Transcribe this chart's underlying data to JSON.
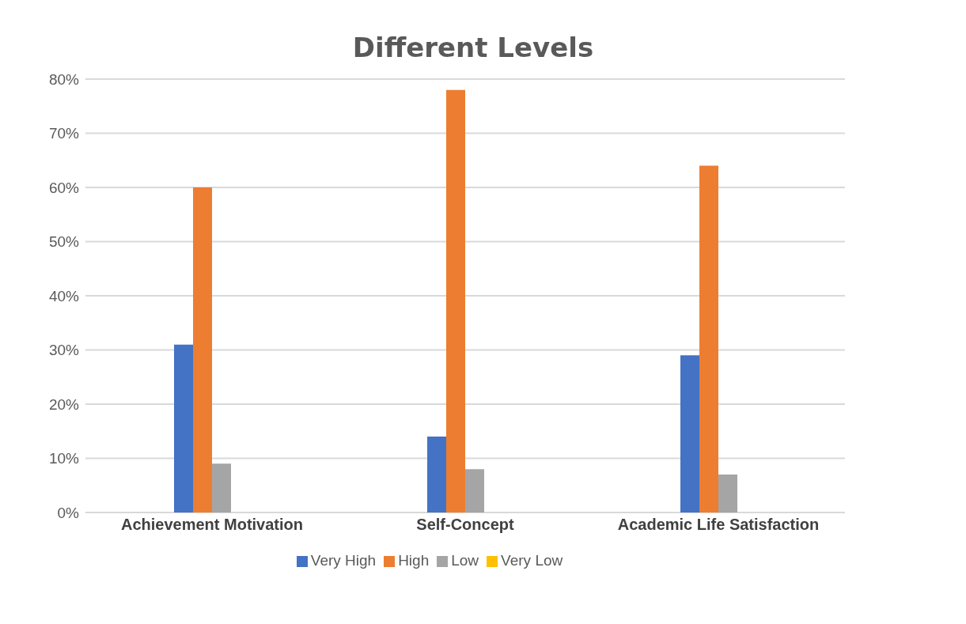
{
  "chart_data": {
    "type": "bar",
    "title": "Different Levels",
    "categories": [
      "Achievement Motivation",
      "Self-Concept",
      "Academic Life Satisfaction"
    ],
    "series": [
      {
        "name": "Very High",
        "color": "#4472c4",
        "values": [
          31,
          14,
          29
        ]
      },
      {
        "name": "High",
        "color": "#ed7d31",
        "values": [
          60,
          78,
          64
        ]
      },
      {
        "name": "Low",
        "color": "#a5a5a5",
        "values": [
          9,
          8,
          7
        ]
      },
      {
        "name": "Very Low",
        "color": "#ffc000",
        "values": [
          0,
          0,
          0
        ]
      }
    ],
    "ylim": [
      0,
      80
    ],
    "yticks": [
      {
        "value": 0,
        "label": "0%"
      },
      {
        "value": 10,
        "label": "10%"
      },
      {
        "value": 20,
        "label": "20%"
      },
      {
        "value": 30,
        "label": "30%"
      },
      {
        "value": 40,
        "label": "40%"
      },
      {
        "value": 50,
        "label": "50%"
      },
      {
        "value": 60,
        "label": "60%"
      },
      {
        "value": 70,
        "label": "70%"
      },
      {
        "value": 80,
        "label": "80%"
      }
    ],
    "grid": "y",
    "legend": "bottom"
  }
}
